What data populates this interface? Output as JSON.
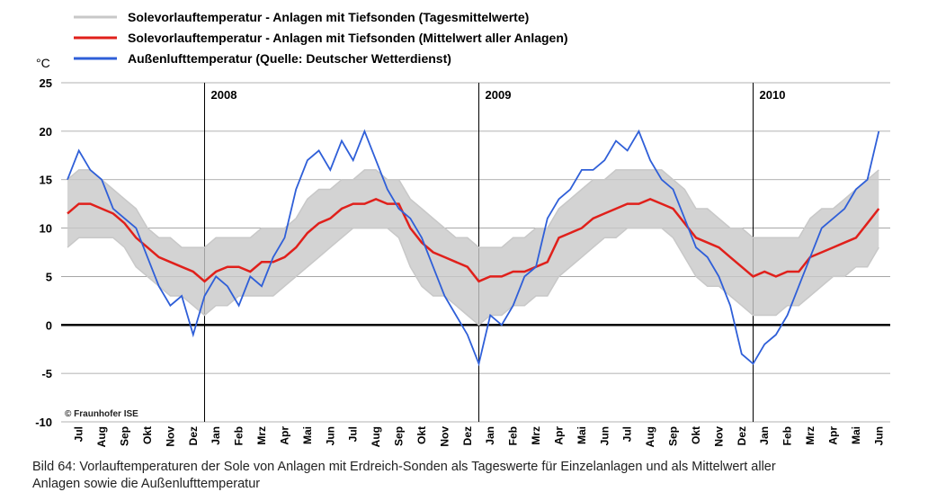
{
  "chart_data": {
    "type": "line",
    "y_unit": "°C",
    "copyright": "© Fraunhofer ISE",
    "caption": [
      "Bild 64: Vorlauftemperaturen der Sole von Anlagen mit Erdreich-Sonden als Tageswerte für Einzelanlagen und als Mittelwert aller",
      "Anlagen sowie die Außenlufttemperatur"
    ],
    "ylim": [
      -10,
      25
    ],
    "yticks": [
      -10,
      -5,
      0,
      5,
      10,
      15,
      20,
      25
    ],
    "grid": true,
    "xlim": [
      0,
      36
    ],
    "xticks": [
      {
        "value": 0.5,
        "label": "Jul"
      },
      {
        "value": 1.5,
        "label": "Aug"
      },
      {
        "value": 2.5,
        "label": "Sep"
      },
      {
        "value": 3.5,
        "label": "Okt"
      },
      {
        "value": 4.5,
        "label": "Nov"
      },
      {
        "value": 5.5,
        "label": "Dez"
      },
      {
        "value": 6.5,
        "label": "Jan"
      },
      {
        "value": 7.5,
        "label": "Feb"
      },
      {
        "value": 8.5,
        "label": "Mrz"
      },
      {
        "value": 9.5,
        "label": "Apr"
      },
      {
        "value": 10.5,
        "label": "Mai"
      },
      {
        "value": 11.5,
        "label": "Jun"
      },
      {
        "value": 12.5,
        "label": "Jul"
      },
      {
        "value": 13.5,
        "label": "Aug"
      },
      {
        "value": 14.5,
        "label": "Sep"
      },
      {
        "value": 15.5,
        "label": "Okt"
      },
      {
        "value": 16.5,
        "label": "Nov"
      },
      {
        "value": 17.5,
        "label": "Dez"
      },
      {
        "value": 18.5,
        "label": "Jan"
      },
      {
        "value": 19.5,
        "label": "Feb"
      },
      {
        "value": 20.5,
        "label": "Mrz"
      },
      {
        "value": 21.5,
        "label": "Apr"
      },
      {
        "value": 22.5,
        "label": "Mai"
      },
      {
        "value": 23.5,
        "label": "Jun"
      },
      {
        "value": 24.5,
        "label": "Jul"
      },
      {
        "value": 25.5,
        "label": "Aug"
      },
      {
        "value": 26.5,
        "label": "Sep"
      },
      {
        "value": 27.5,
        "label": "Okt"
      },
      {
        "value": 28.5,
        "label": "Nov"
      },
      {
        "value": 29.5,
        "label": "Dez"
      },
      {
        "value": 30.5,
        "label": "Jan"
      },
      {
        "value": 31.5,
        "label": "Feb"
      },
      {
        "value": 32.5,
        "label": "Mrz"
      },
      {
        "value": 33.5,
        "label": "Apr"
      },
      {
        "value": 34.5,
        "label": "Mai"
      },
      {
        "value": 35.5,
        "label": "Jun"
      }
    ],
    "year_markers": [
      {
        "value": 6,
        "label": "2008"
      },
      {
        "value": 18,
        "label": "2009"
      },
      {
        "value": 30,
        "label": "2010"
      }
    ],
    "x": [
      0,
      0.5,
      1,
      1.5,
      2,
      2.5,
      3,
      3.5,
      4,
      4.5,
      5,
      5.5,
      6,
      6.5,
      7,
      7.5,
      8,
      8.5,
      9,
      9.5,
      10,
      10.5,
      11,
      11.5,
      12,
      12.5,
      13,
      13.5,
      14,
      14.5,
      15,
      15.5,
      16,
      16.5,
      17,
      17.5,
      18,
      18.5,
      19,
      19.5,
      20,
      20.5,
      21,
      21.5,
      22,
      22.5,
      23,
      23.5,
      24,
      24.5,
      25,
      25.5,
      26,
      26.5,
      27,
      27.5,
      28,
      28.5,
      29,
      29.5,
      30,
      30.5,
      31,
      31.5,
      32,
      32.5,
      33,
      33.5,
      34,
      34.5,
      35,
      35.5
    ],
    "series": [
      {
        "name": "Solevorlauftemperatur - Anlagen mit Tiefsonden (Tagesmittelwerte)",
        "color": "#c8c8c8",
        "band": true,
        "values": [
          [
            8,
            9,
            9,
            9,
            9,
            8,
            6,
            5,
            4,
            3,
            3,
            2,
            1,
            2,
            2,
            3,
            3,
            3,
            3,
            4,
            5,
            6,
            7,
            8,
            9,
            10,
            10,
            10,
            10,
            9,
            6,
            4,
            3,
            3,
            2,
            1,
            0,
            1,
            1,
            2,
            2,
            3,
            3,
            5,
            6,
            7,
            8,
            9,
            9,
            10,
            10,
            10,
            10,
            9,
            7,
            5,
            4,
            4,
            3,
            2,
            1,
            1,
            1,
            2,
            2,
            3,
            4,
            5,
            5,
            6,
            6,
            8
          ],
          [
            15,
            16,
            16,
            15,
            14,
            13,
            12,
            10,
            9,
            9,
            8,
            8,
            8,
            9,
            9,
            9,
            9,
            10,
            10,
            10,
            11,
            13,
            14,
            14,
            15,
            15,
            16,
            16,
            15,
            15,
            13,
            12,
            11,
            10,
            9,
            9,
            8,
            8,
            8,
            9,
            9,
            10,
            10,
            12,
            13,
            14,
            15,
            15,
            16,
            16,
            16,
            16,
            16,
            15,
            14,
            12,
            12,
            11,
            10,
            10,
            9,
            9,
            9,
            9,
            9,
            11,
            12,
            12,
            13,
            14,
            15,
            16
          ]
        ]
      },
      {
        "name": "Solevorlauftemperatur - Anlagen mit Tiefsonden (Mittelwert aller Anlagen)",
        "color": "#e0201b",
        "values": [
          11.5,
          12.5,
          12.5,
          12,
          11.5,
          10.5,
          9,
          8,
          7,
          6.5,
          6,
          5.5,
          4.5,
          5.5,
          6,
          6,
          5.5,
          6.5,
          6.5,
          7,
          8,
          9.5,
          10.5,
          11,
          12,
          12.5,
          12.5,
          13,
          12.5,
          12.5,
          10,
          8.5,
          7.5,
          7,
          6.5,
          6,
          4.5,
          5,
          5,
          5.5,
          5.5,
          6,
          6.5,
          9,
          9.5,
          10,
          11,
          11.5,
          12,
          12.5,
          12.5,
          13,
          12.5,
          12,
          10.5,
          9,
          8.5,
          8,
          7,
          6,
          5,
          5.5,
          5,
          5.5,
          5.5,
          7,
          7.5,
          8,
          8.5,
          9,
          10.5,
          12
        ]
      },
      {
        "name": "Außenlufttemperatur (Quelle: Deutscher Wetterdienst)",
        "color": "#2f5fd8",
        "values": [
          15,
          18,
          16,
          15,
          12,
          11,
          10,
          7,
          4,
          2,
          3,
          -1,
          3,
          5,
          4,
          2,
          5,
          4,
          7,
          9,
          14,
          17,
          18,
          16,
          19,
          17,
          20,
          17,
          14,
          12,
          11,
          9,
          6,
          3,
          1,
          -1,
          -4,
          1,
          0,
          2,
          5,
          6,
          11,
          13,
          14,
          16,
          16,
          17,
          19,
          18,
          20,
          17,
          15,
          14,
          11,
          8,
          7,
          5,
          2,
          -3,
          -4,
          -2,
          -1,
          1,
          4,
          7,
          10,
          11,
          12,
          14,
          15,
          20
        ]
      }
    ]
  }
}
